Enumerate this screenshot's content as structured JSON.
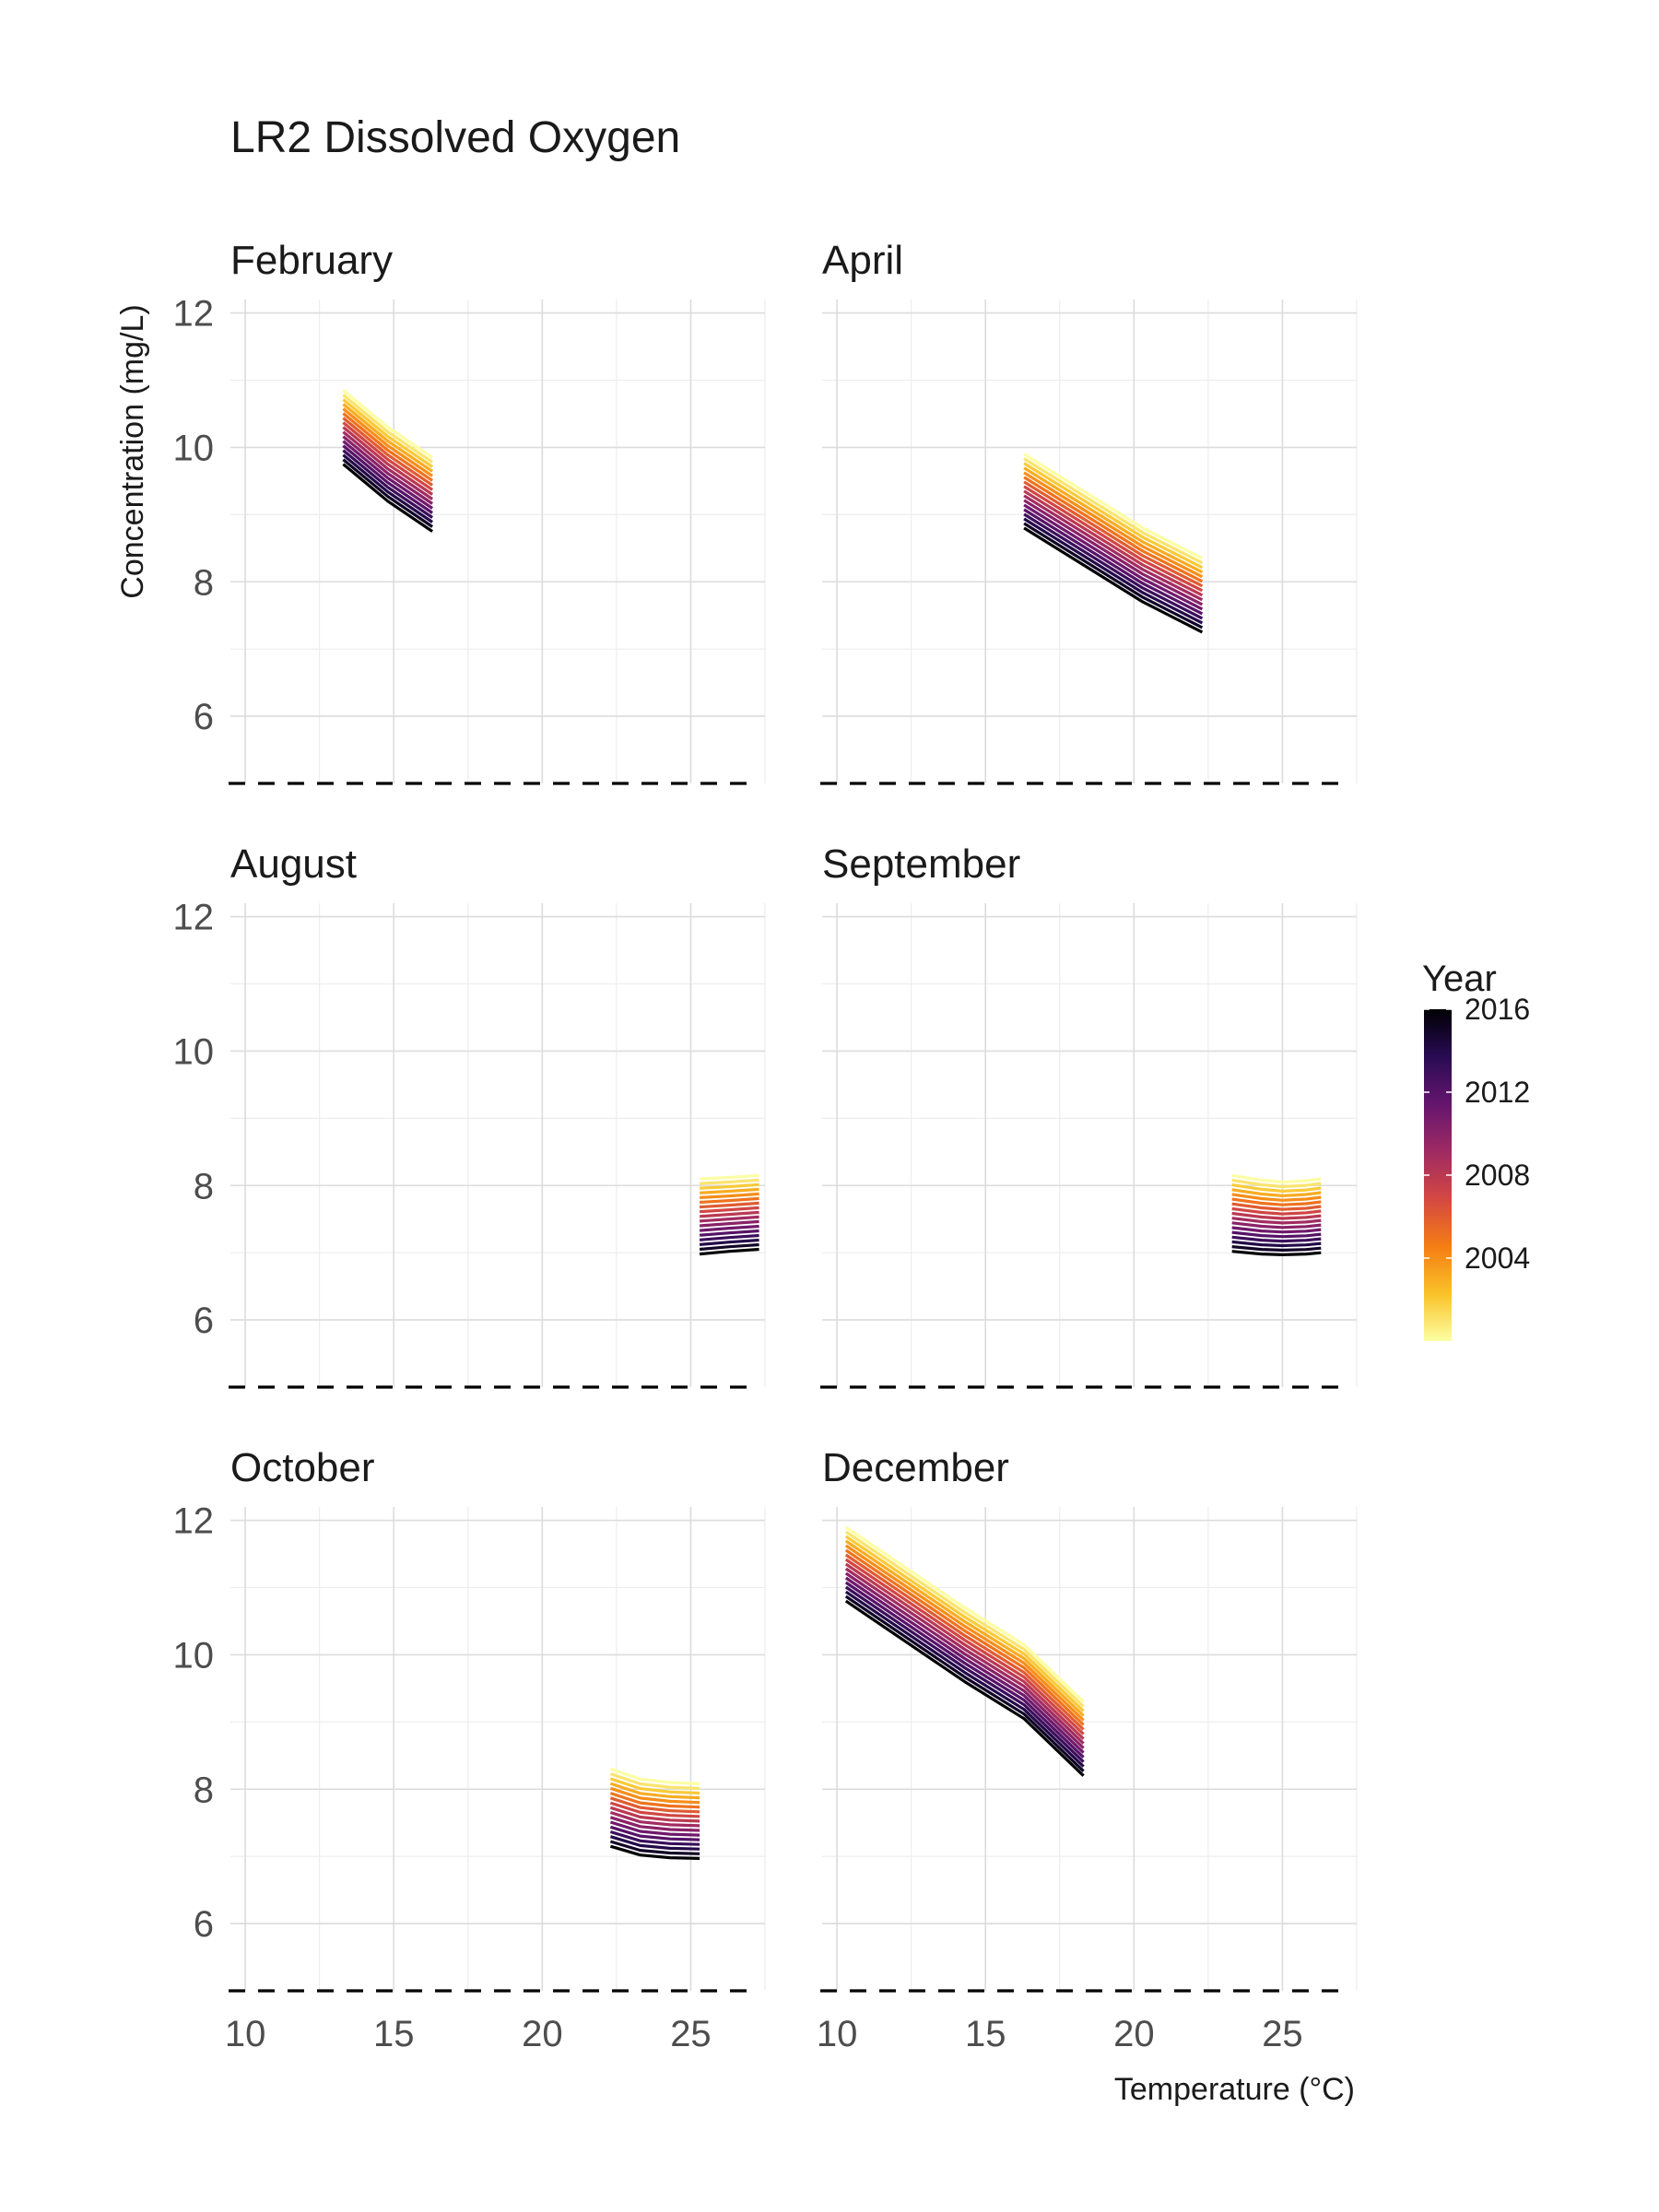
{
  "chart_data": {
    "type": "line",
    "title": "LR2 Dissolved Oxygen",
    "xlabel": "Temperature (°C)",
    "ylabel": "Concentration (mg/L)",
    "xlim": [
      9.5,
      27.5
    ],
    "ylim": [
      5.0,
      12.2
    ],
    "x_ticks": [
      10,
      15,
      20,
      25
    ],
    "y_ticks": [
      6,
      8,
      10,
      12
    ],
    "reference_line_y": 5,
    "legend": {
      "title": "Year",
      "labels": [
        "2016",
        "2012",
        "2008",
        "2004"
      ],
      "year_range": [
        2000,
        2016
      ],
      "colors": [
        "#fcffa4",
        "#fac228",
        "#f57d15",
        "#d44842",
        "#9f2a63",
        "#65156e",
        "#280b53",
        "#000004"
      ]
    },
    "series_note_years": [
      2000,
      2001,
      2002,
      2003,
      2004,
      2005,
      2006,
      2007,
      2008,
      2009,
      2010,
      2011,
      2012,
      2013,
      2014,
      2015,
      2016
    ],
    "facets": [
      {
        "name": "February",
        "x": [
          13.3,
          14.8,
          16.3
        ],
        "top": [
          10.85,
          10.3,
          9.85
        ],
        "bottom": [
          9.75,
          9.2,
          8.75
        ]
      },
      {
        "name": "April",
        "x": [
          16.3,
          18.3,
          20.3,
          22.3
        ],
        "top": [
          9.9,
          9.35,
          8.8,
          8.35
        ],
        "bottom": [
          8.8,
          8.25,
          7.7,
          7.25
        ]
      },
      {
        "name": "August",
        "x": [
          25.3,
          26.3,
          27.3
        ],
        "top": [
          8.1,
          8.12,
          8.15
        ],
        "bottom": [
          6.98,
          7.02,
          7.05
        ]
      },
      {
        "name": "September",
        "x": [
          23.3,
          24.3,
          25.0,
          25.8,
          26.3
        ],
        "top": [
          8.15,
          8.08,
          8.05,
          8.07,
          8.1
        ],
        "bottom": [
          7.02,
          6.98,
          6.97,
          6.98,
          7.0
        ]
      },
      {
        "name": "October",
        "x": [
          22.3,
          23.3,
          24.3,
          25.3
        ],
        "top": [
          8.3,
          8.15,
          8.1,
          8.08
        ],
        "bottom": [
          7.15,
          7.02,
          6.98,
          6.97
        ]
      },
      {
        "name": "December",
        "x": [
          10.3,
          12.3,
          14.3,
          16.3,
          18.3
        ],
        "top": [
          11.9,
          11.3,
          10.7,
          10.15,
          9.3
        ],
        "bottom": [
          10.8,
          10.2,
          9.6,
          9.05,
          8.2
        ]
      }
    ]
  }
}
